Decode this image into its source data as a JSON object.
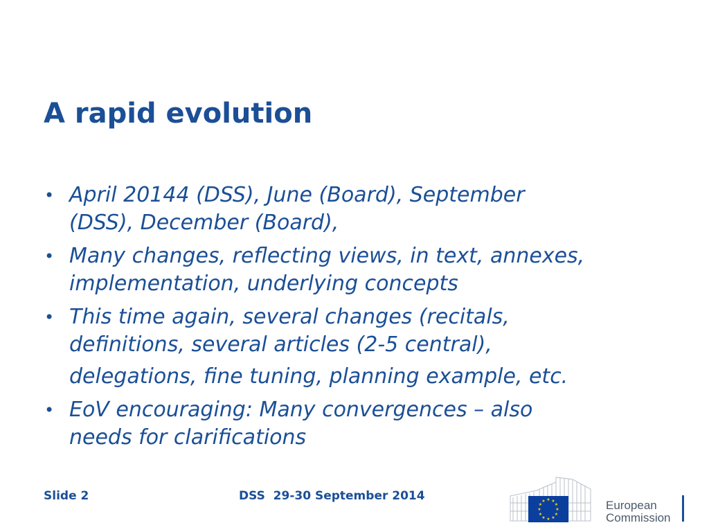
{
  "slide": {
    "title": "A rapid evolution",
    "bullets": [
      {
        "lines": [
          "April 20144 (DSS), June (Board), September",
          "(DSS), December (Board),"
        ]
      },
      {
        "lines": [
          "Many changes, reflecting views, in text, annexes,",
          "implementation, underlying concepts"
        ]
      },
      {
        "lines": [
          "This time again, several changes (recitals,",
          "definitions, several articles (2-5 central),",
          "delegations, fine tuning, planning example, etc."
        ]
      },
      {
        "lines": [
          "EoV encouraging: Many convergences – also",
          "needs for clarifications"
        ]
      }
    ]
  },
  "footer": {
    "slide_number": "Slide 2",
    "event": "DSS  29-30 September 2014"
  },
  "logo": {
    "line1": "European",
    "line2": "Commission"
  },
  "colors": {
    "primary": "#1b4f96",
    "flag_blue": "#0b3f9e",
    "flag_stars": "#f7d417",
    "logo_text": "#4a5a6a"
  }
}
